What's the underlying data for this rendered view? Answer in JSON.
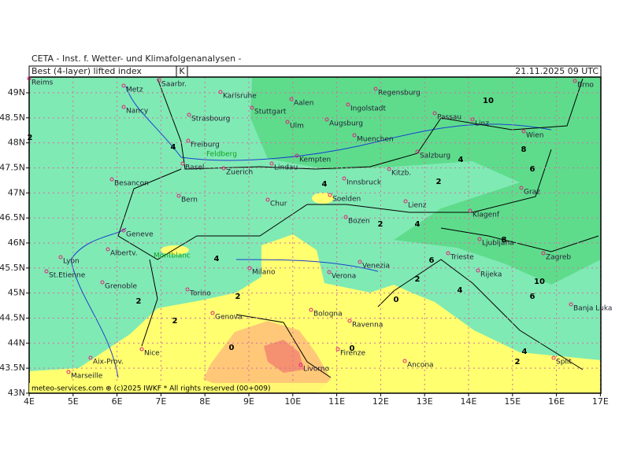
{
  "header": "CETA - Inst. f. Wetter- und Klimafolgenanalysen -",
  "title": "Best (4-layer) lifted index",
  "unit": "K",
  "valid_time": "21.11.2025 09 UTC",
  "footer": "meteo-services.com ⊕ (c)2025 IWKF * All rights reserved (00+009)",
  "lat_labels": [
    "49N",
    "48.5N",
    "48N",
    "47.5N",
    "47N",
    "46.5N",
    "46N",
    "45.5N",
    "45N",
    "44.5N",
    "44N",
    "43.5N",
    "43N"
  ],
  "lon_labels": [
    "4E",
    "5E",
    "6E",
    "7E",
    "8E",
    "9E",
    "10E",
    "11E",
    "12E",
    "13E",
    "14E",
    "15E",
    "16E",
    "17E"
  ],
  "cities": [
    "Reims",
    "Metz",
    "Saarbr.",
    "Karlsruhe",
    "Aalen",
    "Ingolstadt",
    "Regensburg",
    "Brno",
    "Nancy",
    "Strasbourg",
    "Stuttgart",
    "Ulm",
    "Augsburg",
    "Passau",
    "Linz",
    "Wien",
    "Freiburg",
    "Muenchen",
    "Salzburg",
    "Basel",
    "Zuerich",
    "Lindau",
    "Kempten",
    "Kitzb.",
    "Besancon",
    "Innsbruck",
    "Graz",
    "Bern",
    "Chur",
    "Soelden",
    "Lienz",
    "Klagenf",
    "Bozen",
    "Geneve",
    "Ljubljana",
    "Albertv.",
    "Zagreb",
    "Lyon",
    "Trieste",
    "Milano",
    "Venezia",
    "Verona",
    "St.Etienne",
    "Rijeka",
    "Grenoble",
    "Torino",
    "Banja Luka",
    "Genova",
    "Bologna",
    "Ravenna",
    "Nice",
    "Firenze",
    "Aix-Prov.",
    "Ancona",
    "Livorno",
    "Split",
    "Marseille"
  ],
  "peaks": [
    "Feldberg",
    "Montblanc"
  ],
  "contour_labels": [
    "10",
    "2",
    "4",
    "8",
    "6",
    "4",
    "2",
    "4",
    "2",
    "4",
    "4",
    "8",
    "6",
    "4",
    "2",
    "10",
    "6",
    "2",
    "2",
    "0",
    "2",
    "0",
    "0",
    "4",
    "2"
  ]
}
